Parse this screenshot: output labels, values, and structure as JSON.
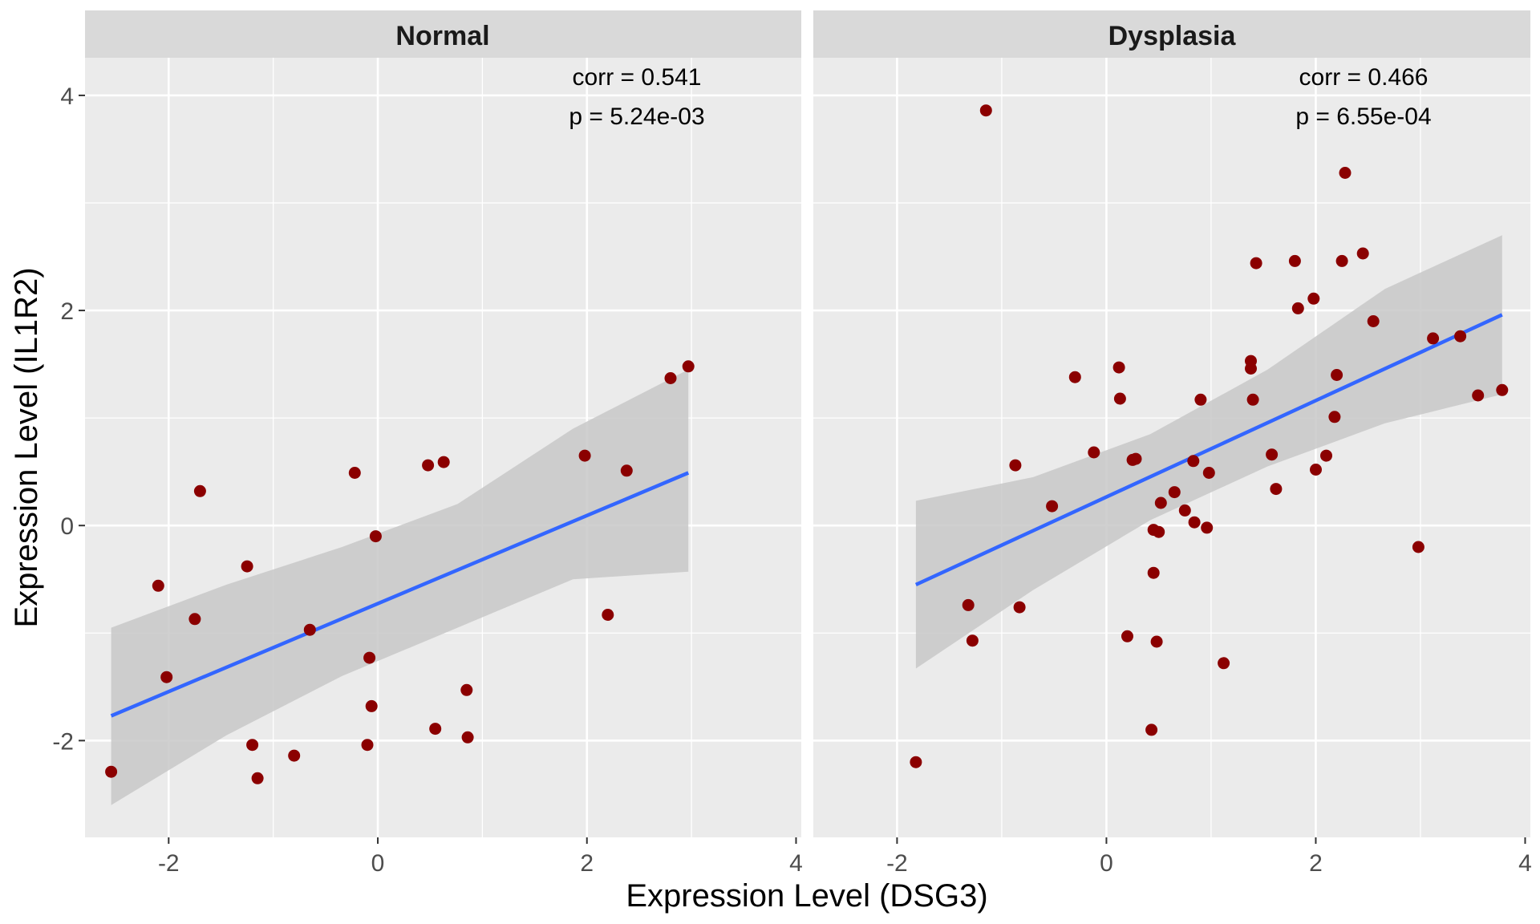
{
  "figure": {
    "xlabel": "Expression Level (DSG3)",
    "ylabel": "Expression Level (IL1R2)"
  },
  "colors": {
    "panel_bg": "#EBEBEB",
    "strip_bg": "#D9D9D9",
    "grid": "#FFFFFF",
    "point": "#8B0000",
    "fit_line": "#3366FF",
    "ribbon": "#C8C8C8",
    "text": "#1A1A1A",
    "tick_text": "#4D4D4D"
  },
  "chart_data": [
    {
      "type": "scatter",
      "facet": "Normal",
      "xlim": [
        -2.8,
        4.05
      ],
      "ylim": [
        -2.9,
        4.35
      ],
      "x_ticks": [
        -2,
        0,
        2,
        4
      ],
      "y_ticks": [
        -2,
        0,
        2,
        4
      ],
      "annotations": [
        "corr = 0.541",
        "p = 5.24e-03"
      ],
      "points": [
        [
          -2.55,
          -2.29
        ],
        [
          -2.1,
          -0.56
        ],
        [
          -2.02,
          -1.41
        ],
        [
          -1.75,
          -0.87
        ],
        [
          -1.7,
          0.32
        ],
        [
          -1.25,
          -0.38
        ],
        [
          -1.2,
          -2.04
        ],
        [
          -1.15,
          -2.35
        ],
        [
          -0.8,
          -2.14
        ],
        [
          -0.65,
          -0.97
        ],
        [
          -0.22,
          0.49
        ],
        [
          -0.1,
          -2.04
        ],
        [
          -0.08,
          -1.23
        ],
        [
          -0.06,
          -1.68
        ],
        [
          -0.02,
          -0.1
        ],
        [
          0.48,
          0.56
        ],
        [
          0.55,
          -1.89
        ],
        [
          0.63,
          0.59
        ],
        [
          0.85,
          -1.53
        ],
        [
          0.86,
          -1.97
        ],
        [
          1.98,
          0.65
        ],
        [
          2.2,
          -0.83
        ],
        [
          2.38,
          0.51
        ],
        [
          2.8,
          1.37
        ],
        [
          2.97,
          1.48
        ]
      ],
      "fit": {
        "x": [
          -2.55,
          2.97
        ],
        "y": [
          -1.77,
          0.49
        ],
        "ribbon_lower": [
          -2.6,
          -1.95,
          -1.4,
          -0.95,
          -0.5,
          -0.43
        ],
        "ribbon_upper": [
          -0.95,
          -0.55,
          -0.2,
          0.2,
          0.9,
          1.45
        ]
      }
    },
    {
      "type": "scatter",
      "facet": "Dysplasia",
      "xlim": [
        -2.8,
        4.05
      ],
      "ylim": [
        -2.9,
        4.35
      ],
      "x_ticks": [
        -2,
        0,
        2,
        4
      ],
      "y_ticks": [
        -2,
        0,
        2,
        4
      ],
      "annotations": [
        "corr = 0.466",
        "p = 6.55e-04"
      ],
      "points": [
        [
          -1.82,
          -2.2
        ],
        [
          -1.32,
          -0.74
        ],
        [
          -1.28,
          -1.07
        ],
        [
          -1.15,
          3.86
        ],
        [
          -0.87,
          0.56
        ],
        [
          -0.83,
          -0.76
        ],
        [
          -0.52,
          0.18
        ],
        [
          -0.3,
          1.38
        ],
        [
          -0.12,
          0.68
        ],
        [
          0.12,
          1.47
        ],
        [
          0.13,
          1.18
        ],
        [
          0.2,
          -1.03
        ],
        [
          0.25,
          0.61
        ],
        [
          0.28,
          0.62
        ],
        [
          0.43,
          -1.9
        ],
        [
          0.45,
          -0.44
        ],
        [
          0.45,
          -0.04
        ],
        [
          0.48,
          -1.08
        ],
        [
          0.5,
          -0.06
        ],
        [
          0.52,
          0.21
        ],
        [
          0.65,
          0.31
        ],
        [
          0.75,
          0.14
        ],
        [
          0.83,
          0.6
        ],
        [
          0.84,
          0.03
        ],
        [
          0.9,
          1.17
        ],
        [
          0.96,
          -0.02
        ],
        [
          0.98,
          0.49
        ],
        [
          1.12,
          -1.28
        ],
        [
          1.38,
          1.46
        ],
        [
          1.38,
          1.53
        ],
        [
          1.4,
          1.17
        ],
        [
          1.43,
          2.44
        ],
        [
          1.58,
          0.66
        ],
        [
          1.62,
          0.34
        ],
        [
          1.8,
          2.46
        ],
        [
          1.83,
          2.02
        ],
        [
          1.98,
          2.11
        ],
        [
          2.0,
          0.52
        ],
        [
          2.1,
          0.65
        ],
        [
          2.18,
          1.01
        ],
        [
          2.2,
          1.4
        ],
        [
          2.25,
          2.46
        ],
        [
          2.28,
          3.28
        ],
        [
          2.45,
          2.53
        ],
        [
          2.55,
          1.9
        ],
        [
          2.98,
          -0.2
        ],
        [
          3.12,
          1.74
        ],
        [
          3.38,
          1.76
        ],
        [
          3.55,
          1.21
        ],
        [
          3.78,
          1.26
        ]
      ],
      "fit": {
        "x": [
          -1.82,
          3.78
        ],
        "y": [
          -0.55,
          1.96
        ],
        "ribbon_lower": [
          -1.33,
          -0.6,
          0.05,
          0.55,
          0.95,
          1.22
        ],
        "ribbon_upper": [
          0.23,
          0.45,
          0.85,
          1.45,
          2.2,
          2.7
        ]
      }
    }
  ]
}
